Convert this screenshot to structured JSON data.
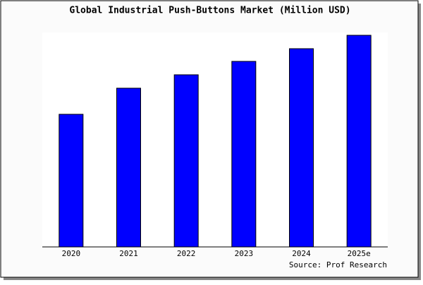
{
  "chart_data": {
    "type": "bar",
    "title": "Global Industrial Push-Buttons Market (Million USD)",
    "categories": [
      "2020",
      "2021",
      "2022",
      "2023",
      "2024",
      "2025e"
    ],
    "values": [
      188,
      225,
      244,
      263,
      281,
      300
    ],
    "color": "#0000ff",
    "source": "Source: Prof Research"
  }
}
